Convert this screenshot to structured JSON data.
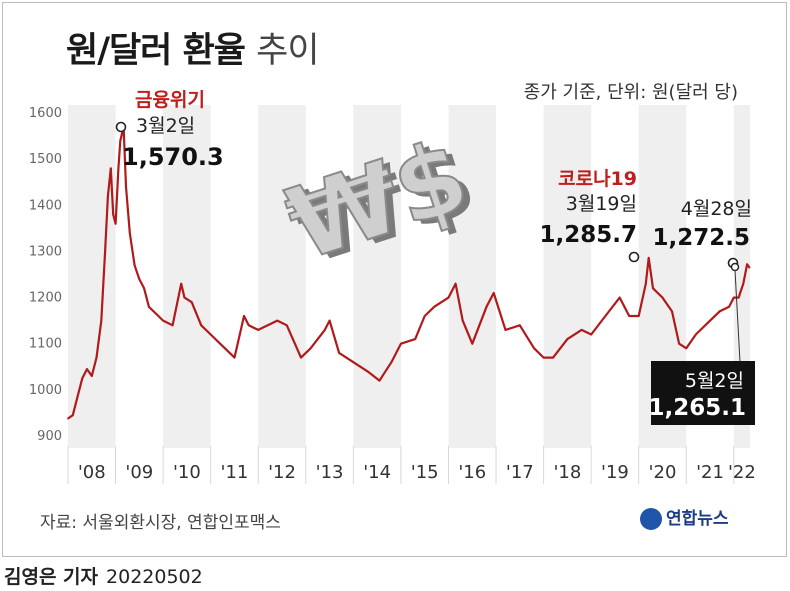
{
  "header": {
    "title_bold": "원/달러 환율",
    "title_light": "추이",
    "subtitle": "종가 기준, 단위: 원(달러 당)"
  },
  "footer": {
    "source": "자료: 서울외환시장, 연합인포맥스",
    "logo_text": "연합뉴스",
    "reporter": "김영은 기자",
    "date": "20220502"
  },
  "colors": {
    "line": "#b11a1a",
    "annotation_red": "#c01d1d",
    "bg_shade": "#eeeeee"
  },
  "icons": [
    "won-dollar-3d-icon",
    "yonhap-logo-icon"
  ],
  "annotations": [
    {
      "id": "crisis",
      "label": "금융위기",
      "date": "3월2일",
      "value": "1,570.3"
    },
    {
      "id": "corona",
      "label": "코로나19",
      "date": "3월19일",
      "value": "1,285.7"
    },
    {
      "id": "apr28",
      "label": "",
      "date": "4월28일",
      "value": "1,272.5"
    },
    {
      "id": "latest",
      "label": "",
      "date": "5월2일",
      "value": "1,265.1"
    }
  ],
  "chart_data": {
    "type": "line",
    "title": "원/달러 환율 추이",
    "xlabel": "",
    "ylabel": "",
    "ylim": [
      900,
      1600
    ],
    "yticks": [
      900,
      1000,
      1100,
      1200,
      1300,
      1400,
      1500,
      1600
    ],
    "xlim": [
      2008.0,
      2022.34
    ],
    "xtick_labels": [
      "'08",
      "'09",
      "'10",
      "'11",
      "'12",
      "'13",
      "'14",
      "'15",
      "'16",
      "'17",
      "'18",
      "'19",
      "'20",
      "'21",
      "'22"
    ],
    "grid": "vertical bands",
    "x": [
      2008.0,
      2008.1,
      2008.2,
      2008.3,
      2008.4,
      2008.5,
      2008.6,
      2008.7,
      2008.78,
      2008.84,
      2008.9,
      2008.95,
      2009.0,
      2009.06,
      2009.1,
      2009.17,
      2009.22,
      2009.3,
      2009.4,
      2009.5,
      2009.6,
      2009.7,
      2009.8,
      2009.9,
      2010.0,
      2010.2,
      2010.38,
      2010.45,
      2010.6,
      2010.8,
      2011.0,
      2011.3,
      2011.5,
      2011.7,
      2011.8,
      2012.0,
      2012.4,
      2012.6,
      2012.9,
      2013.1,
      2013.4,
      2013.5,
      2013.7,
      2014.0,
      2014.3,
      2014.55,
      2014.8,
      2015.0,
      2015.3,
      2015.5,
      2015.7,
      2016.0,
      2016.15,
      2016.3,
      2016.5,
      2016.8,
      2016.95,
      2017.2,
      2017.5,
      2017.8,
      2018.0,
      2018.2,
      2018.5,
      2018.8,
      2019.0,
      2019.3,
      2019.6,
      2019.8,
      2020.0,
      2020.15,
      2020.21,
      2020.3,
      2020.5,
      2020.7,
      2020.85,
      2021.0,
      2021.2,
      2021.5,
      2021.7,
      2021.9,
      2022.0,
      2022.1,
      2022.2,
      2022.28,
      2022.33
    ],
    "series": [
      {
        "values": [
          938,
          945,
          985,
          1025,
          1045,
          1030,
          1070,
          1150,
          1300,
          1420,
          1480,
          1380,
          1360,
          1480,
          1540,
          1570,
          1440,
          1340,
          1270,
          1240,
          1220,
          1180,
          1170,
          1160,
          1150,
          1140,
          1230,
          1200,
          1190,
          1140,
          1120,
          1090,
          1070,
          1160,
          1140,
          1130,
          1150,
          1140,
          1070,
          1090,
          1130,
          1150,
          1080,
          1060,
          1040,
          1020,
          1060,
          1100,
          1110,
          1160,
          1180,
          1200,
          1230,
          1150,
          1100,
          1180,
          1210,
          1130,
          1140,
          1090,
          1070,
          1070,
          1110,
          1130,
          1120,
          1160,
          1200,
          1160,
          1160,
          1230,
          1286,
          1220,
          1200,
          1170,
          1100,
          1090,
          1120,
          1150,
          1170,
          1180,
          1200,
          1200,
          1230,
          1272,
          1265
        ]
      }
    ]
  }
}
